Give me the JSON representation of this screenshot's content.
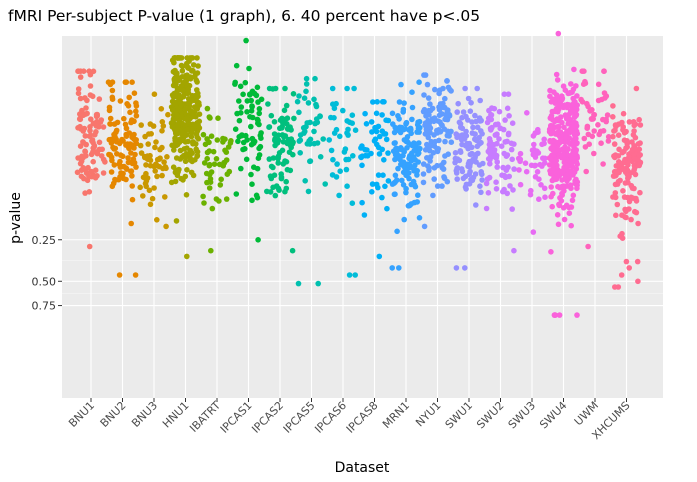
{
  "chart_data": {
    "type": "scatter",
    "title": "fMRI Per-subject P-value (1 graph), 6. 40 percent have p<.05",
    "xlabel": "Dataset",
    "ylabel": "p-value",
    "y_scale": "log",
    "y_ticks": [
      "0.25",
      "0.50",
      "0.75"
    ],
    "grid": true,
    "legend": "none",
    "panel_background": "#ebebeb",
    "categories": [
      "BNU1",
      "BNU2",
      "BNU3",
      "HNU1",
      "IBATRT",
      "IPCAS1",
      "IPCAS2",
      "IPCAS5",
      "IPCAS6",
      "IPCAS8",
      "MRN1",
      "NYU1",
      "SWU1",
      "SWU2",
      "SWU3",
      "SWU4",
      "UWM",
      "XHCUMS"
    ],
    "series": [
      {
        "category": "BNU1",
        "color": "#F8766D",
        "n": 100,
        "median": 0.045,
        "spread": 0.5,
        "min": 0.015,
        "max": 0.28
      },
      {
        "category": "BNU2",
        "color": "#E58700",
        "n": 110,
        "median": 0.05,
        "spread": 0.48,
        "min": 0.018,
        "max": 0.45
      },
      {
        "category": "BNU3",
        "color": "#C99800",
        "n": 55,
        "median": 0.06,
        "spread": 0.42,
        "min": 0.022,
        "max": 0.2
      },
      {
        "category": "HNU1",
        "color": "#A3A500",
        "n": 300,
        "median": 0.03,
        "spread": 0.55,
        "min": 0.012,
        "max": 0.33
      },
      {
        "category": "IBATRT",
        "color": "#6BB100",
        "n": 50,
        "median": 0.065,
        "spread": 0.4,
        "min": 0.028,
        "max": 0.3
      },
      {
        "category": "IPCAS1",
        "color": "#00BA38",
        "n": 70,
        "median": 0.04,
        "spread": 0.5,
        "min": 0.009,
        "max": 0.25
      },
      {
        "category": "IPCAS2",
        "color": "#00BF7D",
        "n": 80,
        "median": 0.05,
        "spread": 0.45,
        "min": 0.02,
        "max": 0.3
      },
      {
        "category": "IPCAS5",
        "color": "#00C0AF",
        "n": 40,
        "median": 0.04,
        "spread": 0.45,
        "min": 0.017,
        "max": 0.52
      },
      {
        "category": "IPCAS6",
        "color": "#00BCD8",
        "n": 35,
        "median": 0.055,
        "spread": 0.5,
        "min": 0.02,
        "max": 0.45
      },
      {
        "category": "IPCAS8",
        "color": "#00B0F6",
        "n": 50,
        "median": 0.06,
        "spread": 0.48,
        "min": 0.025,
        "max": 0.33
      },
      {
        "category": "MRN1",
        "color": "#35A2FF",
        "n": 130,
        "median": 0.06,
        "spread": 0.45,
        "min": 0.018,
        "max": 0.4
      },
      {
        "category": "NYU1",
        "color": "#619CFF",
        "n": 120,
        "median": 0.04,
        "spread": 0.45,
        "min": 0.016,
        "max": 0.2
      },
      {
        "category": "SWU1",
        "color": "#9590FF",
        "n": 100,
        "median": 0.055,
        "spread": 0.42,
        "min": 0.02,
        "max": 0.4
      },
      {
        "category": "SWU2",
        "color": "#C77CFF",
        "n": 80,
        "median": 0.055,
        "spread": 0.42,
        "min": 0.022,
        "max": 0.3
      },
      {
        "category": "SWU3",
        "color": "#E76BF3",
        "n": 40,
        "median": 0.065,
        "spread": 0.35,
        "min": 0.03,
        "max": 0.22
      },
      {
        "category": "SWU4",
        "color": "#FA62DB",
        "n": 320,
        "median": 0.05,
        "spread": 0.5,
        "min": 0.008,
        "max": 0.88
      },
      {
        "category": "UWM",
        "color": "#FF62BC",
        "n": 45,
        "median": 0.032,
        "spread": 0.4,
        "min": 0.015,
        "max": 0.28
      },
      {
        "category": "XHCUMS",
        "color": "#FF6C91",
        "n": 140,
        "median": 0.07,
        "spread": 0.48,
        "min": 0.02,
        "max": 0.55
      }
    ],
    "outliers": [
      {
        "category": "SWU4",
        "values": [
          0.88,
          0.88,
          0.88,
          0.88
        ]
      },
      {
        "category": "IPCAS5",
        "values": [
          0.52
        ]
      },
      {
        "category": "XHCUMS",
        "values": [
          0.55,
          0.5,
          0.45,
          0.4,
          0.36,
          0.36
        ]
      },
      {
        "category": "BNU2",
        "values": [
          0.45
        ]
      },
      {
        "category": "IPCAS6",
        "values": [
          0.45
        ]
      },
      {
        "category": "SWU1",
        "values": [
          0.4
        ]
      },
      {
        "category": "MRN1",
        "values": [
          0.4
        ]
      }
    ]
  }
}
